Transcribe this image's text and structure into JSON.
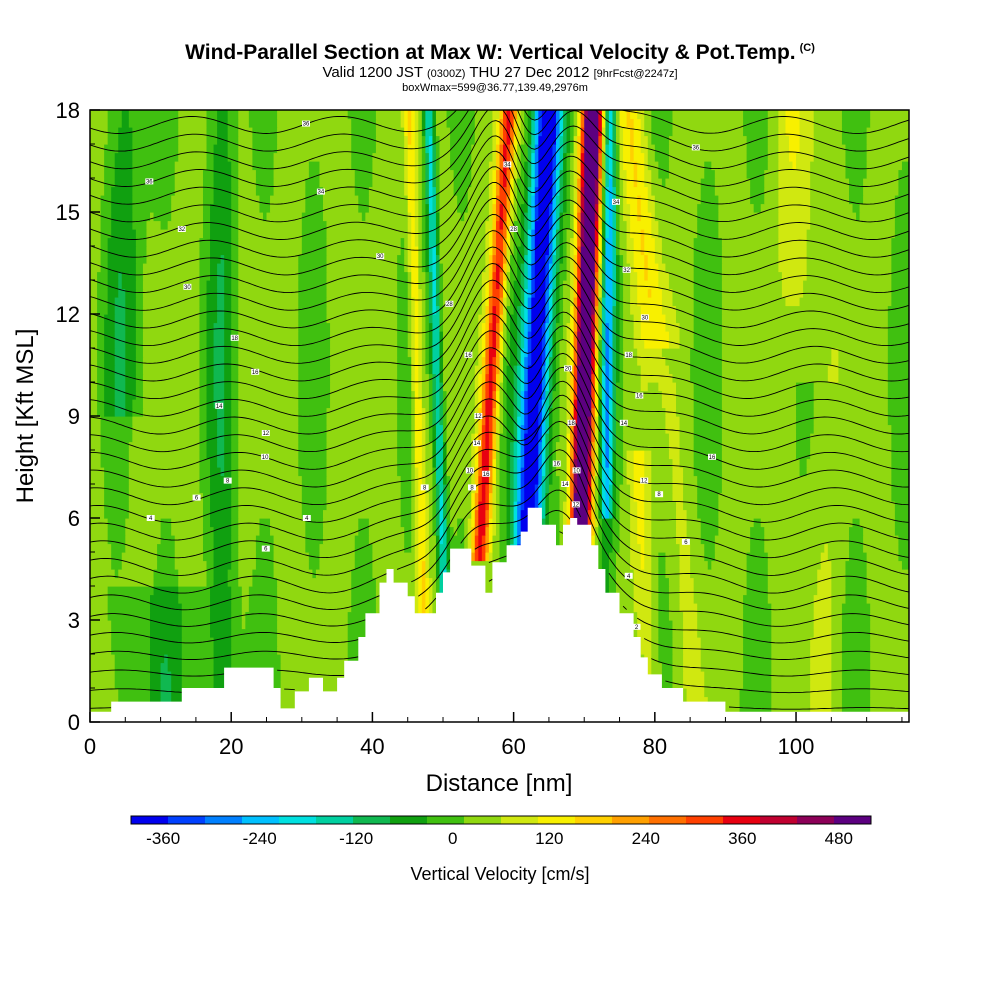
{
  "title": {
    "main": "Wind-Parallel Section at Max W: Vertical Velocity & Pot.Temp.",
    "copyright": "(C)",
    "valid_a": "Valid 1200 JST",
    "valid_b": "(0300Z)",
    "valid_c": "THU 27 Dec 2012",
    "valid_d": "[9hrFcst@2247z]",
    "box": "boxWmax=599@36.77,139.49,2976m"
  },
  "chart_data": {
    "type": "heatmap",
    "xlabel": "Distance [nm]",
    "ylabel": "Height [Kft MSL]",
    "xlim": [
      0,
      116
    ],
    "ylim": [
      0,
      18
    ],
    "x_ticks": [
      0,
      20,
      40,
      60,
      80,
      100
    ],
    "y_ticks": [
      0,
      3,
      6,
      9,
      12,
      15,
      18
    ],
    "grid": false,
    "colorbar": {
      "title": "Vertical Velocity [cm/s]",
      "tick_values": [
        -360,
        -240,
        -120,
        0,
        120,
        240,
        360,
        480
      ],
      "tick_labels": [
        "-360",
        "-240",
        "-120",
        "0",
        "120",
        "240",
        "360",
        "480"
      ],
      "min": -400,
      "max": 520,
      "colors": [
        "#0000ee",
        "#0040ff",
        "#0080ff",
        "#00c0ff",
        "#00e0e0",
        "#00d0a0",
        "#10b850",
        "#10a010",
        "#40c010",
        "#90d810",
        "#d0e810",
        "#f8f000",
        "#ffd000",
        "#ffa000",
        "#ff7000",
        "#ff4000",
        "#e80010",
        "#c00030",
        "#8c0058",
        "#5c0080"
      ]
    },
    "terrain_kft": [
      [
        0,
        0.3
      ],
      [
        3,
        0.3
      ],
      [
        3,
        0.6
      ],
      [
        13,
        0.6
      ],
      [
        13,
        1.0
      ],
      [
        19,
        1.0
      ],
      [
        19,
        1.6
      ],
      [
        26,
        1.6
      ],
      [
        26,
        1.0
      ],
      [
        27,
        1.0
      ],
      [
        27,
        0.4
      ],
      [
        29,
        0.4
      ],
      [
        29,
        0.9
      ],
      [
        31,
        0.9
      ],
      [
        31,
        1.3
      ],
      [
        33,
        1.3
      ],
      [
        33,
        0.9
      ],
      [
        35,
        0.9
      ],
      [
        35,
        1.3
      ],
      [
        36,
        1.3
      ],
      [
        36,
        1.8
      ],
      [
        38,
        1.8
      ],
      [
        38,
        2.5
      ],
      [
        39,
        2.5
      ],
      [
        39,
        3.2
      ],
      [
        41,
        3.2
      ],
      [
        41,
        4.1
      ],
      [
        42,
        4.1
      ],
      [
        42,
        4.5
      ],
      [
        43,
        4.5
      ],
      [
        43,
        4.1
      ],
      [
        45,
        4.1
      ],
      [
        45,
        3.7
      ],
      [
        46,
        3.7
      ],
      [
        46,
        3.2
      ],
      [
        49,
        3.2
      ],
      [
        49,
        3.8
      ],
      [
        50,
        3.8
      ],
      [
        50,
        4.4
      ],
      [
        51,
        4.4
      ],
      [
        51,
        5.1
      ],
      [
        54,
        5.1
      ],
      [
        54,
        4.6
      ],
      [
        56,
        4.6
      ],
      [
        56,
        3.8
      ],
      [
        57,
        3.8
      ],
      [
        57,
        4.7
      ],
      [
        59,
        4.7
      ],
      [
        59,
        5.2
      ],
      [
        61,
        5.2
      ],
      [
        61,
        5.6
      ],
      [
        62,
        5.6
      ],
      [
        62,
        6.3
      ],
      [
        64,
        6.3
      ],
      [
        64,
        5.8
      ],
      [
        66,
        5.8
      ],
      [
        66,
        5.2
      ],
      [
        67,
        5.2
      ],
      [
        67,
        5.8
      ],
      [
        68,
        5.8
      ],
      [
        68,
        6.0
      ],
      [
        69,
        6.0
      ],
      [
        69,
        5.8
      ],
      [
        71,
        5.8
      ],
      [
        71,
        5.2
      ],
      [
        72,
        5.2
      ],
      [
        72,
        4.5
      ],
      [
        73,
        4.5
      ],
      [
        73,
        3.8
      ],
      [
        75,
        3.8
      ],
      [
        75,
        3.2
      ],
      [
        77,
        3.2
      ],
      [
        77,
        2.5
      ],
      [
        78,
        2.5
      ],
      [
        78,
        1.9
      ],
      [
        79,
        1.9
      ],
      [
        79,
        1.4
      ],
      [
        81,
        1.4
      ],
      [
        81,
        1.0
      ],
      [
        84,
        1.0
      ],
      [
        84,
        0.6
      ],
      [
        90,
        0.6
      ],
      [
        90,
        0.3
      ],
      [
        116,
        0.3
      ]
    ],
    "isentrope_labels": [
      {
        "x": 30.6,
        "y": 17.6,
        "v": "36"
      },
      {
        "x": 8.4,
        "y": 15.9,
        "v": "36"
      },
      {
        "x": 32.7,
        "y": 15.6,
        "v": "34"
      },
      {
        "x": 13.0,
        "y": 14.5,
        "v": "32"
      },
      {
        "x": 41.1,
        "y": 13.7,
        "v": "30"
      },
      {
        "x": 13.8,
        "y": 12.8,
        "v": "30"
      },
      {
        "x": 50.9,
        "y": 12.3,
        "v": "28"
      },
      {
        "x": 20.5,
        "y": 11.3,
        "v": "18"
      },
      {
        "x": 23.4,
        "y": 10.3,
        "v": "16"
      },
      {
        "x": 18.3,
        "y": 9.3,
        "v": "14"
      },
      {
        "x": 24.9,
        "y": 8.5,
        "v": "12"
      },
      {
        "x": 24.8,
        "y": 7.8,
        "v": "10"
      },
      {
        "x": 19.5,
        "y": 7.1,
        "v": "8"
      },
      {
        "x": 15.1,
        "y": 6.6,
        "v": "6"
      },
      {
        "x": 8.6,
        "y": 6.0,
        "v": "4"
      },
      {
        "x": 30.7,
        "y": 6.0,
        "v": "4"
      },
      {
        "x": 24.9,
        "y": 5.1,
        "v": "6"
      },
      {
        "x": 47.4,
        "y": 6.9,
        "v": "8"
      },
      {
        "x": 53.6,
        "y": 10.8,
        "v": "16"
      },
      {
        "x": 55.0,
        "y": 9.0,
        "v": "12"
      },
      {
        "x": 54.8,
        "y": 8.2,
        "v": "14"
      },
      {
        "x": 56.1,
        "y": 7.3,
        "v": "16"
      },
      {
        "x": 53.8,
        "y": 7.4,
        "v": "10"
      },
      {
        "x": 54.1,
        "y": 6.9,
        "v": "8"
      },
      {
        "x": 59.1,
        "y": 16.4,
        "v": "34"
      },
      {
        "x": 60.0,
        "y": 14.5,
        "v": "28"
      },
      {
        "x": 67.7,
        "y": 10.4,
        "v": "20"
      },
      {
        "x": 68.2,
        "y": 8.8,
        "v": "18"
      },
      {
        "x": 66.1,
        "y": 7.6,
        "v": "16"
      },
      {
        "x": 67.3,
        "y": 7.0,
        "v": "14"
      },
      {
        "x": 68.9,
        "y": 7.4,
        "v": "10"
      },
      {
        "x": 68.8,
        "y": 6.4,
        "v": "12"
      },
      {
        "x": 74.5,
        "y": 15.3,
        "v": "34"
      },
      {
        "x": 76.0,
        "y": 13.3,
        "v": "32"
      },
      {
        "x": 78.6,
        "y": 11.9,
        "v": "30"
      },
      {
        "x": 76.3,
        "y": 10.8,
        "v": "18"
      },
      {
        "x": 77.8,
        "y": 9.6,
        "v": "16"
      },
      {
        "x": 75.6,
        "y": 8.8,
        "v": "14"
      },
      {
        "x": 78.5,
        "y": 7.1,
        "v": "12"
      },
      {
        "x": 80.6,
        "y": 6.7,
        "v": "8"
      },
      {
        "x": 84.4,
        "y": 5.3,
        "v": "6"
      },
      {
        "x": 76.3,
        "y": 4.3,
        "v": "4"
      },
      {
        "x": 77.4,
        "y": 2.8,
        "v": "2"
      },
      {
        "x": 88.1,
        "y": 7.8,
        "v": "16"
      },
      {
        "x": 85.8,
        "y": 16.9,
        "v": "36"
      }
    ]
  }
}
